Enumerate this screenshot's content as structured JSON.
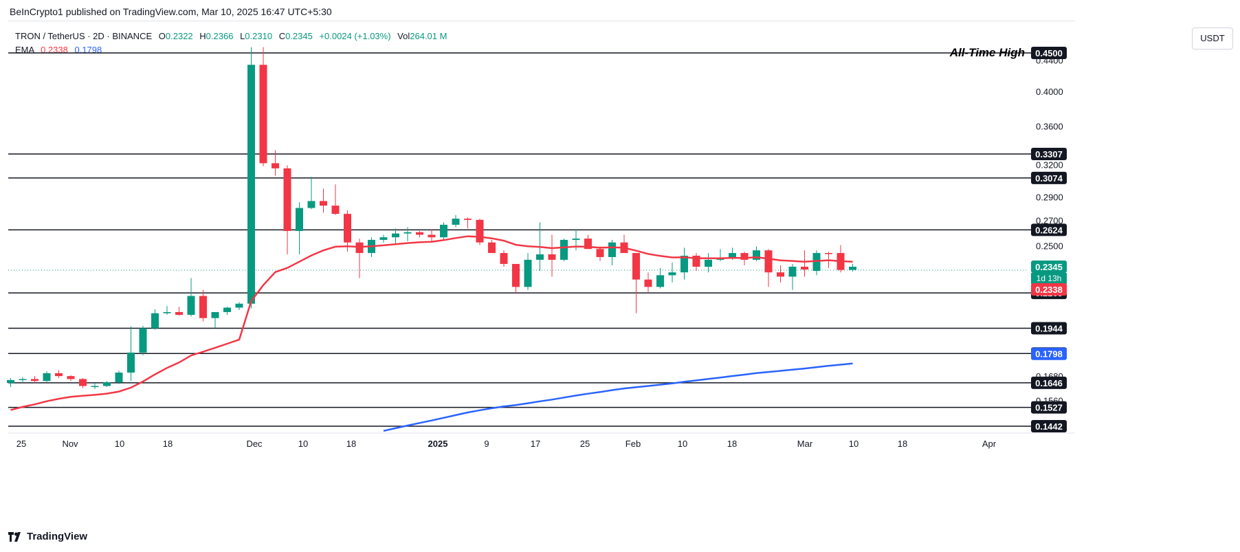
{
  "header": {
    "published": "BeInCrypto1 published on TradingView.com, Mar 10, 2025 16:47 UTC+5:30"
  },
  "legend": {
    "symbol": "TRON / TetherUS · 2D · BINANCE",
    "open_label": "O",
    "open": "0.2322",
    "high_label": "H",
    "high": "0.2366",
    "low_label": "L",
    "low": "0.2310",
    "close_label": "C",
    "close": "0.2345",
    "change": "+0.0024 (+1.03%)",
    "vol_label": "Vol",
    "vol": "264.01 M",
    "ema_label": "EMA",
    "ema_fast": "0.2338",
    "ema_slow": "0.1798"
  },
  "currency_button": "USDT",
  "branding": "TradingView",
  "colors": {
    "up": "#089981",
    "down": "#f23645",
    "ema_fast": "#f23645",
    "ema_slow": "#2962ff",
    "level_line": "#131722"
  },
  "chart_data": {
    "type": "candlestick",
    "title": "TRON / TetherUS · 2D · BINANCE",
    "y_scale": "log",
    "ylim": [
      0.1442,
      0.458
    ],
    "x_tick_labels": [
      "25",
      "Nov",
      "10",
      "18",
      "Dec",
      "10",
      "18",
      "2025",
      "9",
      "17",
      "25",
      "Feb",
      "10",
      "18",
      "Mar",
      "10",
      "18",
      "Apr"
    ],
    "y_tick_labels": [
      "0.4400",
      "0.4000",
      "0.3600",
      "0.3200",
      "0.2900",
      "0.2700",
      "0.2500",
      "0.1680",
      "0.1560"
    ],
    "annotation": "All-Time High",
    "horizontal_levels": [
      "0.4500",
      "0.3307",
      "0.3074",
      "0.2624",
      "0.2165",
      "0.1944",
      "0.1800",
      "0.1646",
      "0.1527",
      "0.1442"
    ],
    "price_labels": {
      "last": "0.2345",
      "countdown": "1d 13h",
      "ema_fast": "0.2338",
      "ema_slow": "0.1798"
    },
    "candles": [
      {
        "o": 0.1645,
        "h": 0.167,
        "l": 0.1625,
        "c": 0.166
      },
      {
        "o": 0.166,
        "h": 0.1675,
        "l": 0.1645,
        "c": 0.1665
      },
      {
        "o": 0.1665,
        "h": 0.168,
        "l": 0.1645,
        "c": 0.1655
      },
      {
        "o": 0.1655,
        "h": 0.1705,
        "l": 0.165,
        "c": 0.1695
      },
      {
        "o": 0.1695,
        "h": 0.171,
        "l": 0.167,
        "c": 0.168
      },
      {
        "o": 0.168,
        "h": 0.1685,
        "l": 0.1655,
        "c": 0.1665
      },
      {
        "o": 0.1665,
        "h": 0.167,
        "l": 0.162,
        "c": 0.163
      },
      {
        "o": 0.163,
        "h": 0.1645,
        "l": 0.1615,
        "c": 0.163
      },
      {
        "o": 0.163,
        "h": 0.1655,
        "l": 0.1625,
        "c": 0.1648
      },
      {
        "o": 0.1648,
        "h": 0.1708,
        "l": 0.164,
        "c": 0.1698
      },
      {
        "o": 0.1698,
        "h": 0.1955,
        "l": 0.1655,
        "c": 0.1805
      },
      {
        "o": 0.1805,
        "h": 0.1958,
        "l": 0.179,
        "c": 0.1944
      },
      {
        "o": 0.1944,
        "h": 0.206,
        "l": 0.1935,
        "c": 0.2035
      },
      {
        "o": 0.2035,
        "h": 0.208,
        "l": 0.2025,
        "c": 0.2042
      },
      {
        "o": 0.2042,
        "h": 0.2075,
        "l": 0.202,
        "c": 0.2025
      },
      {
        "o": 0.2025,
        "h": 0.2265,
        "l": 0.2015,
        "c": 0.2145
      },
      {
        "o": 0.2145,
        "h": 0.2185,
        "l": 0.1985,
        "c": 0.2005
      },
      {
        "o": 0.2005,
        "h": 0.2035,
        "l": 0.1945,
        "c": 0.2042
      },
      {
        "o": 0.2042,
        "h": 0.2075,
        "l": 0.2025,
        "c": 0.207
      },
      {
        "o": 0.207,
        "h": 0.2105,
        "l": 0.2055,
        "c": 0.2095
      },
      {
        "o": 0.2095,
        "h": 0.458,
        "l": 0.2065,
        "c": 0.434
      },
      {
        "o": 0.434,
        "h": 0.458,
        "l": 0.3185,
        "c": 0.3215
      },
      {
        "o": 0.3215,
        "h": 0.3345,
        "l": 0.3095,
        "c": 0.3165
      },
      {
        "o": 0.3165,
        "h": 0.3195,
        "l": 0.2435,
        "c": 0.2615
      },
      {
        "o": 0.2615,
        "h": 0.2855,
        "l": 0.2435,
        "c": 0.2805
      },
      {
        "o": 0.2805,
        "h": 0.3085,
        "l": 0.2795,
        "c": 0.2865
      },
      {
        "o": 0.2865,
        "h": 0.2975,
        "l": 0.2765,
        "c": 0.2825
      },
      {
        "o": 0.2825,
        "h": 0.3015,
        "l": 0.2745,
        "c": 0.2755
      },
      {
        "o": 0.2755,
        "h": 0.2785,
        "l": 0.2455,
        "c": 0.2525
      },
      {
        "o": 0.2525,
        "h": 0.2555,
        "l": 0.2265,
        "c": 0.2445
      },
      {
        "o": 0.2445,
        "h": 0.2565,
        "l": 0.2415,
        "c": 0.2545
      },
      {
        "o": 0.2545,
        "h": 0.2585,
        "l": 0.2525,
        "c": 0.2565
      },
      {
        "o": 0.2565,
        "h": 0.2635,
        "l": 0.2515,
        "c": 0.2595
      },
      {
        "o": 0.2595,
        "h": 0.2645,
        "l": 0.2535,
        "c": 0.2605
      },
      {
        "o": 0.2605,
        "h": 0.2615,
        "l": 0.2565,
        "c": 0.2585
      },
      {
        "o": 0.2585,
        "h": 0.2625,
        "l": 0.2525,
        "c": 0.2565
      },
      {
        "o": 0.2565,
        "h": 0.2685,
        "l": 0.2545,
        "c": 0.2665
      },
      {
        "o": 0.2665,
        "h": 0.2745,
        "l": 0.2645,
        "c": 0.2715
      },
      {
        "o": 0.2715,
        "h": 0.2725,
        "l": 0.2635,
        "c": 0.2705
      },
      {
        "o": 0.2705,
        "h": 0.2715,
        "l": 0.2505,
        "c": 0.2525
      },
      {
        "o": 0.2525,
        "h": 0.2545,
        "l": 0.2445,
        "c": 0.2445
      },
      {
        "o": 0.2445,
        "h": 0.2465,
        "l": 0.2345,
        "c": 0.2365
      },
      {
        "o": 0.2365,
        "h": 0.2365,
        "l": 0.2165,
        "c": 0.2205
      },
      {
        "o": 0.2205,
        "h": 0.2445,
        "l": 0.2185,
        "c": 0.2395
      },
      {
        "o": 0.2395,
        "h": 0.2685,
        "l": 0.2315,
        "c": 0.2435
      },
      {
        "o": 0.2435,
        "h": 0.2585,
        "l": 0.2275,
        "c": 0.2395
      },
      {
        "o": 0.2395,
        "h": 0.2555,
        "l": 0.2385,
        "c": 0.2545
      },
      {
        "o": 0.2545,
        "h": 0.2625,
        "l": 0.2465,
        "c": 0.2555
      },
      {
        "o": 0.2555,
        "h": 0.2585,
        "l": 0.2495,
        "c": 0.2475
      },
      {
        "o": 0.2475,
        "h": 0.2495,
        "l": 0.2385,
        "c": 0.2415
      },
      {
        "o": 0.2415,
        "h": 0.2545,
        "l": 0.2355,
        "c": 0.2525
      },
      {
        "o": 0.2525,
        "h": 0.2585,
        "l": 0.2455,
        "c": 0.2445
      },
      {
        "o": 0.2445,
        "h": 0.2445,
        "l": 0.2035,
        "c": 0.2255
      },
      {
        "o": 0.2255,
        "h": 0.2305,
        "l": 0.2165,
        "c": 0.2205
      },
      {
        "o": 0.2205,
        "h": 0.2335,
        "l": 0.2195,
        "c": 0.2285
      },
      {
        "o": 0.2285,
        "h": 0.2375,
        "l": 0.2235,
        "c": 0.2305
      },
      {
        "o": 0.2305,
        "h": 0.2485,
        "l": 0.2255,
        "c": 0.2425
      },
      {
        "o": 0.2425,
        "h": 0.2445,
        "l": 0.2315,
        "c": 0.2345
      },
      {
        "o": 0.2345,
        "h": 0.2445,
        "l": 0.2305,
        "c": 0.2395
      },
      {
        "o": 0.2395,
        "h": 0.2475,
        "l": 0.2385,
        "c": 0.2405
      },
      {
        "o": 0.2405,
        "h": 0.2485,
        "l": 0.2395,
        "c": 0.2445
      },
      {
        "o": 0.2445,
        "h": 0.2455,
        "l": 0.2355,
        "c": 0.2395
      },
      {
        "o": 0.2395,
        "h": 0.2495,
        "l": 0.2385,
        "c": 0.2465
      },
      {
        "o": 0.2465,
        "h": 0.2475,
        "l": 0.2205,
        "c": 0.2305
      },
      {
        "o": 0.2305,
        "h": 0.2355,
        "l": 0.2235,
        "c": 0.2275
      },
      {
        "o": 0.2275,
        "h": 0.2365,
        "l": 0.2185,
        "c": 0.2345
      },
      {
        "o": 0.2345,
        "h": 0.2465,
        "l": 0.2275,
        "c": 0.2325
      },
      {
        "o": 0.2315,
        "h": 0.2465,
        "l": 0.2285,
        "c": 0.2445
      },
      {
        "o": 0.2445,
        "h": 0.2455,
        "l": 0.2335,
        "c": 0.2438
      },
      {
        "o": 0.2445,
        "h": 0.2505,
        "l": 0.2305,
        "c": 0.2322
      },
      {
        "o": 0.2322,
        "h": 0.2366,
        "l": 0.231,
        "c": 0.2345
      }
    ]
  }
}
